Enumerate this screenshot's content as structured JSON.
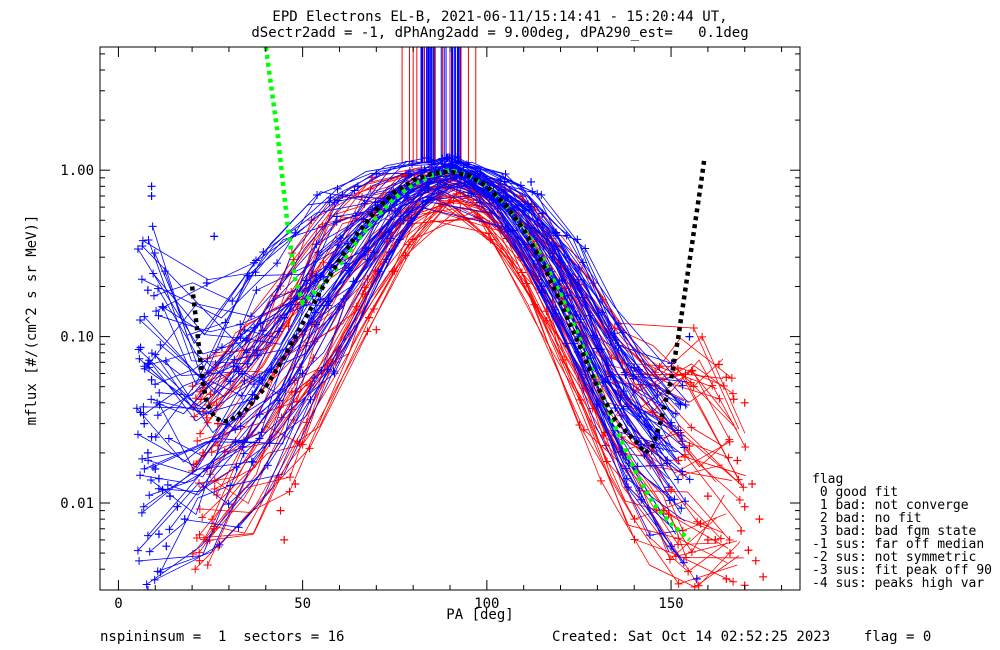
{
  "header": {
    "title_line1": "EPD Electrons EL-B, 2021-06-11/15:14:41 - 15:20:44 UT,",
    "title_line2": "dSectr2add = -1, dPhAng2add = 9.00deg, dPA290_est=   0.1deg"
  },
  "footer": {
    "left": "nspininsum =  1  sectors = 16",
    "right": "Created: Sat Oct 14 02:52:25 2023    flag = 0"
  },
  "legend": {
    "title": "flag",
    "items": [
      " 0 good fit",
      " 1 bad: not converge",
      " 2 bad: no fit",
      " 3 bad: bad fgm state",
      "-1 sus: far off median",
      "-2 sus: not symmetric",
      "-3 sus: fit peak off 90",
      "-4 sus: peaks high var"
    ]
  },
  "chart_data": {
    "type": "line",
    "xlabel": "PA [deg]",
    "ylabel": "mflux [#/(cm^2 s sr MeV)]",
    "xlim": [
      -5,
      185
    ],
    "ylim": [
      0.003,
      5.5
    ],
    "yscale": "log",
    "x_ticks": [
      0,
      50,
      100,
      150
    ],
    "y_ticks": [
      0.01,
      0.1,
      1.0
    ],
    "x_tick_labels": [
      "0",
      "50",
      "100",
      "150"
    ],
    "y_tick_labels": [
      "0.01",
      "0.10",
      "1.00"
    ],
    "colors": {
      "blue_series": "#0000ff",
      "red_series": "#ff0000",
      "green_fit": "#00ff00",
      "black_fit": "#000000"
    },
    "series": [
      {
        "color": "green dashed",
        "x": [
          40,
          43,
          46,
          48,
          50,
          55,
          60,
          65,
          70,
          75,
          80,
          85,
          90,
          95,
          100,
          105,
          110,
          115,
          120,
          125,
          130,
          135,
          140,
          145,
          150,
          155
        ],
        "y": [
          5.5,
          1.8,
          0.45,
          0.22,
          0.16,
          0.2,
          0.27,
          0.38,
          0.52,
          0.68,
          0.82,
          0.93,
          1.0,
          0.93,
          0.8,
          0.62,
          0.45,
          0.3,
          0.18,
          0.1,
          0.052,
          0.028,
          0.016,
          0.01,
          0.0075,
          0.006
        ]
      },
      {
        "color": "black dashed",
        "x": [
          20,
          21,
          22,
          23,
          24,
          26,
          28,
          30,
          35,
          40,
          45,
          50,
          55,
          60,
          65,
          70,
          75,
          80,
          85,
          90,
          95,
          100,
          105,
          110,
          115,
          120,
          125,
          130,
          135,
          140,
          143,
          145,
          147,
          150,
          152,
          154,
          156,
          158,
          159
        ],
        "y": [
          0.2,
          0.13,
          0.08,
          0.052,
          0.04,
          0.033,
          0.031,
          0.031,
          0.037,
          0.05,
          0.075,
          0.12,
          0.19,
          0.29,
          0.42,
          0.58,
          0.74,
          0.87,
          0.95,
          0.98,
          0.93,
          0.8,
          0.62,
          0.44,
          0.28,
          0.16,
          0.09,
          0.05,
          0.031,
          0.024,
          0.02,
          0.022,
          0.03,
          0.055,
          0.1,
          0.2,
          0.4,
          0.8,
          1.15
        ]
      }
    ],
    "scatter_red_plus": {
      "x": [
        163,
        165,
        167,
        170,
        168,
        172,
        170,
        174,
        160,
        158,
        162,
        166,
        169,
        171,
        173,
        175,
        150,
        152,
        155,
        148,
        160,
        165,
        170,
        25,
        27,
        23,
        22,
        26,
        45,
        44,
        48,
        70,
        68
      ],
      "y": [
        0.068,
        0.057,
        0.042,
        0.04,
        0.018,
        0.013,
        0.0095,
        0.008,
        0.011,
        0.0075,
        0.006,
        0.005,
        0.0068,
        0.0052,
        0.0045,
        0.0036,
        0.012,
        0.018,
        0.022,
        0.009,
        0.006,
        0.0035,
        0.0032,
        0.045,
        0.03,
        0.02,
        0.0045,
        0.007,
        0.006,
        0.009,
        0.013,
        0.11,
        0.13
      ]
    },
    "scatter_blue_plus": {
      "x": [
        9,
        9,
        8,
        6,
        8,
        9,
        6,
        7,
        9,
        8,
        10,
        12,
        14,
        16,
        18,
        11,
        13,
        24,
        26,
        45,
        48,
        50,
        65,
        70,
        92,
        112,
        115,
        140,
        155,
        150,
        157,
        8,
        11
      ],
      "y": [
        0.8,
        0.7,
        0.19,
        0.086,
        0.069,
        0.055,
        0.035,
        0.03,
        0.025,
        0.02,
        0.016,
        0.012,
        0.011,
        0.0095,
        0.008,
        0.0065,
        0.0055,
        0.21,
        0.4,
        0.13,
        0.42,
        0.06,
        0.8,
        0.95,
        1.2,
        0.85,
        0.55,
        0.065,
        0.1,
        0.0055,
        0.0035,
        0.003,
        0.014
      ]
    },
    "bundle_envelope_blue": {
      "x": [
        5,
        15,
        25,
        35,
        45,
        55,
        65,
        75,
        85,
        90,
        95,
        105,
        115,
        125,
        135,
        145,
        155,
        160
      ],
      "y_low": [
        0.003,
        0.004,
        0.005,
        0.008,
        0.015,
        0.04,
        0.12,
        0.35,
        0.7,
        0.85,
        0.75,
        0.45,
        0.18,
        0.05,
        0.015,
        0.006,
        0.004,
        0.003
      ],
      "y_high": [
        0.8,
        0.22,
        0.22,
        0.25,
        0.45,
        0.75,
        0.95,
        1.1,
        1.2,
        1.25,
        1.15,
        0.95,
        0.75,
        0.4,
        0.15,
        0.08,
        0.06,
        0.05
      ]
    },
    "bundle_envelope_red": {
      "x": [
        20,
        25,
        35,
        45,
        55,
        65,
        75,
        85,
        90,
        95,
        105,
        115,
        125,
        135,
        145,
        155,
        165,
        175
      ],
      "y_low": [
        0.003,
        0.004,
        0.006,
        0.01,
        0.03,
        0.08,
        0.25,
        0.5,
        0.6,
        0.55,
        0.3,
        0.1,
        0.03,
        0.008,
        0.004,
        0.003,
        0.003,
        0.003
      ],
      "y_high": [
        0.05,
        0.08,
        0.12,
        0.3,
        0.6,
        0.85,
        1.0,
        1.05,
        1.05,
        1.0,
        0.85,
        0.55,
        0.3,
        0.12,
        0.12,
        0.12,
        0.07,
        0.02
      ]
    },
    "vertical_lines": {
      "blue_x_range": [
        82,
        93
      ],
      "red_x": [
        77,
        79,
        80,
        81,
        83,
        86,
        88,
        90,
        93,
        95,
        97
      ],
      "y_bottom": 1.1
    }
  }
}
